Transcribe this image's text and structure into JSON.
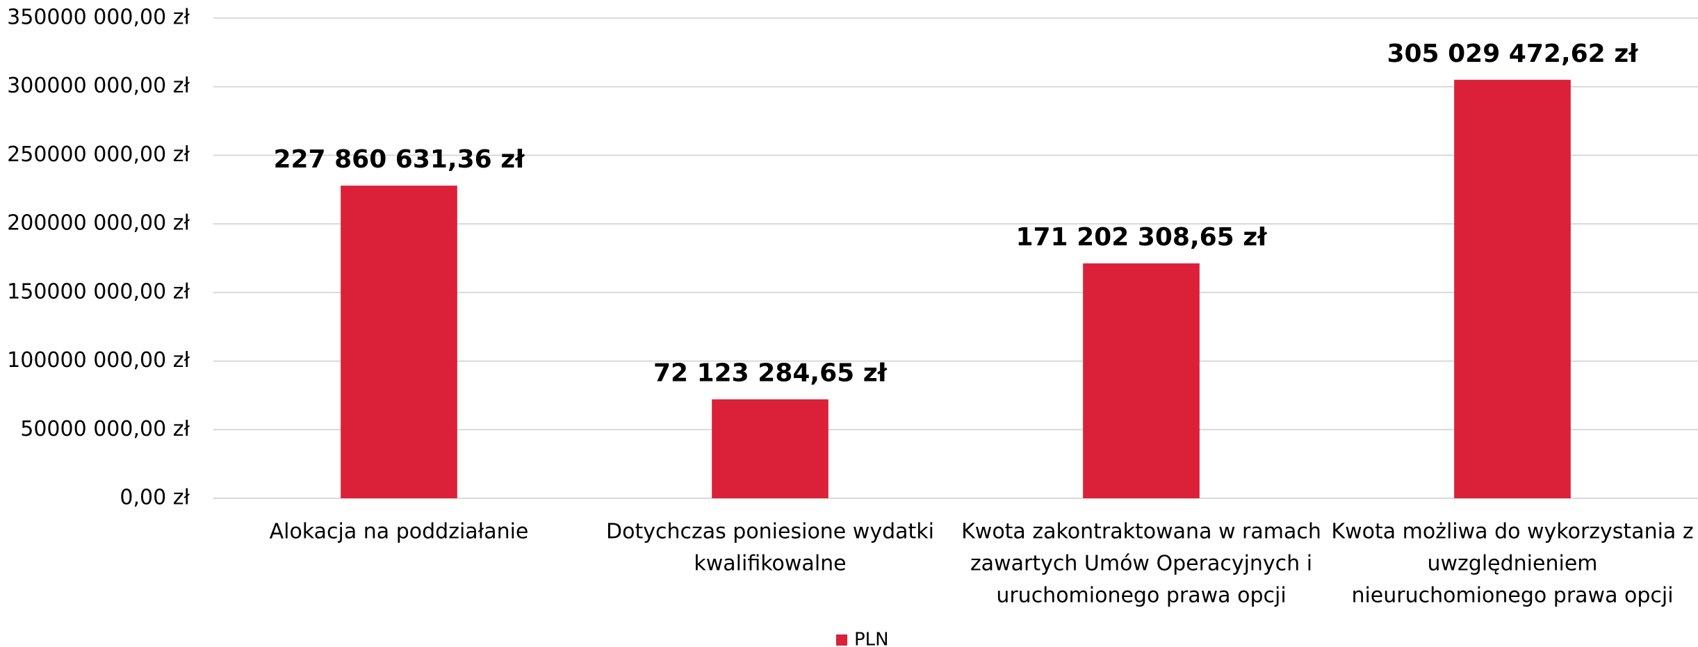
{
  "chart_data": {
    "type": "bar",
    "categories": [
      [
        "Alokacja na poddziałanie"
      ],
      [
        "Dotychczas poniesione wydatki",
        "kwalifikowalne"
      ],
      [
        "Kwota zakontraktowana w ramach",
        "zawartych Umów Operacyjnych i",
        "uruchomionego prawa opcji"
      ],
      [
        "Kwota możliwa do wykorzystania z",
        "uwzględnieniem",
        "nieuruchomionego prawa opcji"
      ]
    ],
    "series": [
      {
        "name": "PLN",
        "color": "#db2139",
        "values": [
          227860631.36,
          72123284.65,
          171202308.65,
          305029472.62
        ],
        "value_labels": [
          "227 860 631,36 zł",
          "72 123 284,65 zł",
          "171 202 308,65 zł",
          "305 029 472,62 zł"
        ]
      }
    ],
    "ylim": [
      0,
      350000000
    ],
    "yticks": [
      {
        "value": 0,
        "label": "0,00 zł"
      },
      {
        "value": 50000000,
        "label": "50000 000,00 zł"
      },
      {
        "value": 100000000,
        "label": "100000 000,00 zł"
      },
      {
        "value": 150000000,
        "label": "150000 000,00 zł"
      },
      {
        "value": 200000000,
        "label": "200000 000,00 zł"
      },
      {
        "value": 250000000,
        "label": "250000 000,00 zł"
      },
      {
        "value": 300000000,
        "label": "300000 000,00 zł"
      },
      {
        "value": 350000000,
        "label": "350000 000,00 zł"
      }
    ],
    "grid": true,
    "legend": "bottom"
  }
}
